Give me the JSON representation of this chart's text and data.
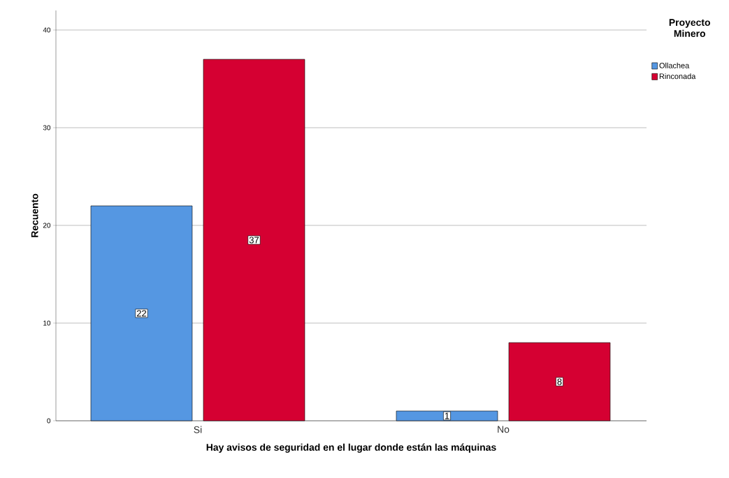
{
  "chart_data": {
    "type": "bar",
    "xlabel": "Hay avisos de seguridad en el lugar donde están las máquinas",
    "ylabel": "Recuento",
    "legend_title": "Proyecto Minero",
    "categories": [
      "Si",
      "No"
    ],
    "series": [
      {
        "name": "Ollachea",
        "color": "#5597e2",
        "values": [
          22,
          1
        ]
      },
      {
        "name": "Rinconada",
        "color": "#d50032",
        "values": [
          37,
          8
        ]
      }
    ],
    "ylim": [
      0,
      42
    ],
    "yticks": [
      0,
      10,
      20,
      30,
      40
    ],
    "grid": "y",
    "legend": "top right",
    "data_labels": true
  }
}
